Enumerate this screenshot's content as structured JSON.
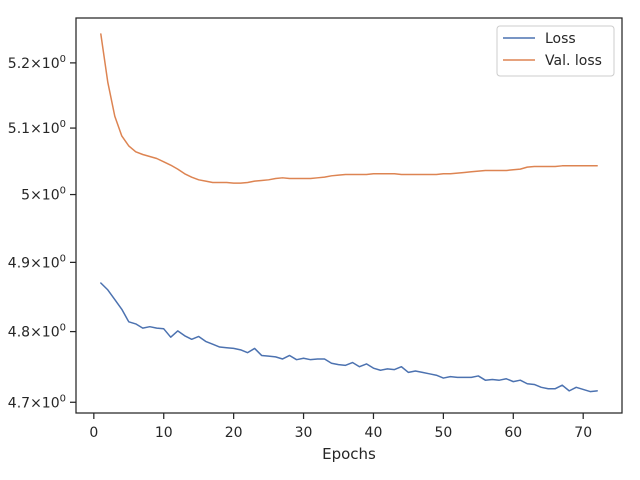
{
  "chart_data": {
    "type": "line",
    "title": "",
    "xlabel": "Epochs",
    "ylabel": "",
    "yscale": "log",
    "xlim": [
      -2.55,
      75.55
    ],
    "ylim": [
      4.685,
      5.27
    ],
    "xticks": [
      0,
      10,
      20,
      30,
      40,
      50,
      60,
      70
    ],
    "xtick_labels": [
      "0",
      "10",
      "20",
      "30",
      "40",
      "50",
      "60",
      "70"
    ],
    "yticks": [
      4.7,
      4.8,
      4.9,
      5.0,
      5.1,
      5.2
    ],
    "ytick_labels": [
      {
        "base": "4.7",
        "sep": "×",
        "exp": "10",
        "sup": "0"
      },
      {
        "base": "4.8",
        "sep": "×",
        "exp": "10",
        "sup": "0"
      },
      {
        "base": "4.9",
        "sep": "×",
        "exp": "10",
        "sup": "0"
      },
      {
        "base": "5",
        "sep": "×",
        "exp": "10",
        "sup": "0"
      },
      {
        "base": "5.1",
        "sep": "×",
        "exp": "10",
        "sup": "0"
      },
      {
        "base": "5.2",
        "sep": "×",
        "exp": "10",
        "sup": "0"
      }
    ],
    "grid": false,
    "legend_position": "top-right",
    "series": [
      {
        "name": "Loss",
        "color": "#4c72b0",
        "x": [
          1,
          2,
          3,
          4,
          5,
          6,
          7,
          8,
          9,
          10,
          11,
          12,
          13,
          14,
          15,
          16,
          17,
          18,
          19,
          20,
          21,
          22,
          23,
          24,
          25,
          26,
          27,
          28,
          29,
          30,
          31,
          32,
          33,
          34,
          35,
          36,
          37,
          38,
          39,
          40,
          41,
          42,
          43,
          44,
          45,
          46,
          47,
          48,
          49,
          50,
          51,
          52,
          53,
          54,
          55,
          56,
          57,
          58,
          59,
          60,
          61,
          62,
          63,
          64,
          65,
          66,
          67,
          68,
          69,
          70,
          71,
          72
        ],
        "values": [
          4.87,
          4.86,
          4.846,
          4.832,
          4.814,
          4.811,
          4.805,
          4.807,
          4.805,
          4.804,
          4.792,
          4.801,
          4.794,
          4.789,
          4.793,
          4.786,
          4.782,
          4.778,
          4.777,
          4.776,
          4.774,
          4.77,
          4.776,
          4.766,
          4.765,
          4.764,
          4.761,
          4.766,
          4.76,
          4.762,
          4.76,
          4.761,
          4.761,
          4.755,
          4.753,
          4.752,
          4.756,
          4.75,
          4.754,
          4.748,
          4.745,
          4.747,
          4.746,
          4.75,
          4.742,
          4.744,
          4.742,
          4.74,
          4.738,
          4.734,
          4.736,
          4.735,
          4.735,
          4.735,
          4.737,
          4.731,
          4.732,
          4.731,
          4.733,
          4.729,
          4.731,
          4.726,
          4.725,
          4.721,
          4.719,
          4.719,
          4.724,
          4.716,
          4.721,
          4.718,
          4.715,
          4.716
        ]
      },
      {
        "name": "Val. loss",
        "color": "#dd8452",
        "x": [
          1,
          2,
          3,
          4,
          5,
          6,
          7,
          8,
          9,
          10,
          11,
          12,
          13,
          14,
          15,
          16,
          17,
          18,
          19,
          20,
          21,
          22,
          23,
          24,
          25,
          26,
          27,
          28,
          29,
          30,
          31,
          32,
          33,
          34,
          35,
          36,
          37,
          38,
          39,
          40,
          41,
          42,
          43,
          44,
          45,
          46,
          47,
          48,
          49,
          50,
          51,
          52,
          53,
          54,
          55,
          56,
          57,
          58,
          59,
          60,
          61,
          62,
          63,
          64,
          65,
          66,
          67,
          68,
          69,
          70,
          71,
          72
        ],
        "values": [
          5.245,
          5.17,
          5.118,
          5.088,
          5.073,
          5.064,
          5.06,
          5.057,
          5.054,
          5.049,
          5.044,
          5.038,
          5.031,
          5.026,
          5.022,
          5.02,
          5.018,
          5.018,
          5.018,
          5.017,
          5.017,
          5.018,
          5.02,
          5.021,
          5.022,
          5.024,
          5.025,
          5.024,
          5.024,
          5.024,
          5.024,
          5.025,
          5.026,
          5.028,
          5.029,
          5.03,
          5.03,
          5.03,
          5.03,
          5.031,
          5.031,
          5.031,
          5.031,
          5.03,
          5.03,
          5.03,
          5.03,
          5.03,
          5.03,
          5.031,
          5.031,
          5.032,
          5.033,
          5.034,
          5.035,
          5.036,
          5.036,
          5.036,
          5.036,
          5.037,
          5.038,
          5.041,
          5.042,
          5.042,
          5.042,
          5.042,
          5.043,
          5.043,
          5.043,
          5.043,
          5.043,
          5.043
        ]
      }
    ]
  }
}
